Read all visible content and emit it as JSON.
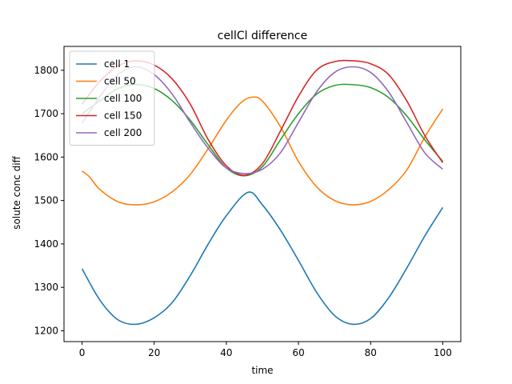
{
  "chart_data": {
    "type": "line",
    "title": "cellCl difference",
    "xlabel": "time",
    "ylabel": "solute conc diff",
    "xlim": [
      -5,
      105
    ],
    "ylim": [
      1175,
      1855
    ],
    "xticks": [
      0,
      20,
      40,
      60,
      80,
      100
    ],
    "yticks": [
      1200,
      1300,
      1400,
      1500,
      1600,
      1700,
      1800
    ],
    "grid": false,
    "legend_position": "upper-left",
    "series": [
      {
        "name": "cell 1",
        "color": "#1f77b4",
        "x": [
          0,
          5,
          10,
          15,
          20,
          25,
          30,
          35,
          40,
          46,
          50,
          55,
          60,
          65,
          70,
          75,
          80,
          85,
          90,
          95,
          100
        ],
        "y": [
          1343,
          1270,
          1225,
          1215,
          1230,
          1265,
          1327,
          1400,
          1465,
          1519,
          1490,
          1432,
          1362,
          1289,
          1235,
          1215,
          1228,
          1276,
          1344,
          1418,
          1484
        ]
      },
      {
        "name": "cell 50",
        "color": "#ff7f0e",
        "x": [
          0,
          2,
          5,
          10,
          15,
          20,
          25,
          30,
          35,
          40,
          44,
          47,
          50,
          55,
          60,
          65,
          70,
          75,
          80,
          85,
          90,
          95,
          100
        ],
        "y": [
          1568,
          1555,
          1525,
          1497,
          1490,
          1497,
          1520,
          1560,
          1620,
          1685,
          1725,
          1738,
          1729,
          1670,
          1590,
          1532,
          1500,
          1490,
          1498,
          1525,
          1570,
          1646,
          1711
        ]
      },
      {
        "name": "cell 100",
        "color": "#2ca02c",
        "x": [
          0,
          5,
          10,
          15,
          20,
          25,
          30,
          35,
          40,
          45,
          50,
          55,
          60,
          65,
          70,
          75,
          80,
          85,
          90,
          95,
          100
        ],
        "y": [
          1700,
          1730,
          1758,
          1767,
          1758,
          1730,
          1685,
          1628,
          1575,
          1557,
          1578,
          1640,
          1700,
          1745,
          1765,
          1767,
          1760,
          1737,
          1695,
          1640,
          1590
        ]
      },
      {
        "name": "cell 150",
        "color": "#d62728",
        "x": [
          0,
          5,
          10,
          15,
          20,
          25,
          30,
          35,
          40,
          45,
          50,
          55,
          60,
          65,
          70,
          75,
          80,
          85,
          90,
          95,
          100
        ],
        "y": [
          1722,
          1775,
          1810,
          1822,
          1812,
          1780,
          1722,
          1640,
          1580,
          1558,
          1585,
          1660,
          1740,
          1800,
          1820,
          1822,
          1815,
          1790,
          1730,
          1650,
          1587
        ]
      },
      {
        "name": "cell 200",
        "color": "#9467bd",
        "x": [
          0,
          5,
          10,
          15,
          20,
          25,
          30,
          35,
          40,
          45,
          50,
          55,
          60,
          65,
          70,
          75,
          80,
          85,
          90,
          95,
          100
        ],
        "y": [
          1678,
          1740,
          1790,
          1808,
          1790,
          1745,
          1680,
          1620,
          1575,
          1562,
          1572,
          1610,
          1680,
          1750,
          1795,
          1808,
          1795,
          1750,
          1680,
          1610,
          1572
        ]
      }
    ]
  }
}
